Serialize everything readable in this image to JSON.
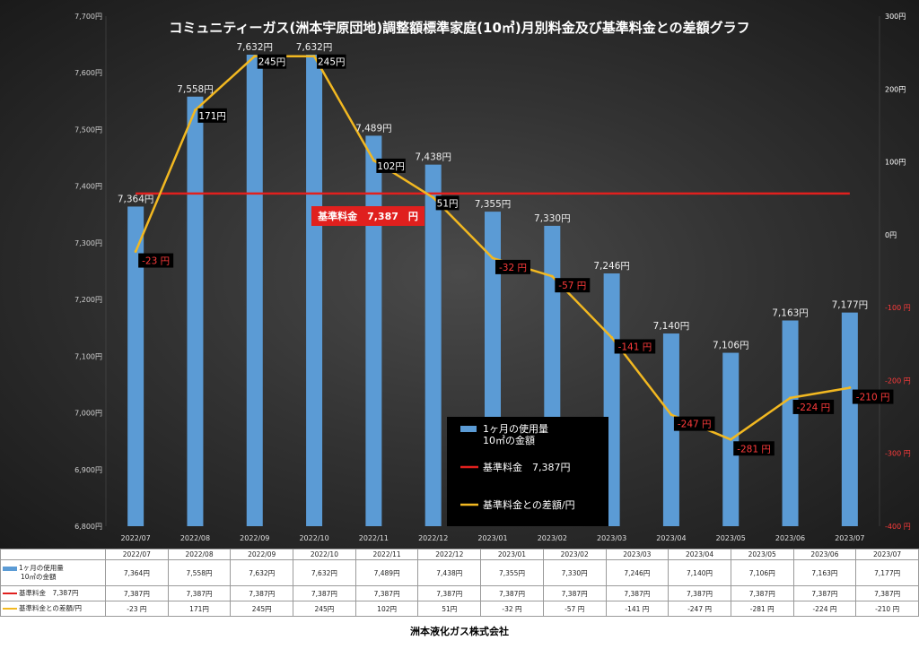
{
  "title": "コミュニティーガス(洲本宇原団地)調整額標準家庭(10㎥)月別料金及び基準料金との差額グラフ",
  "colors": {
    "bar": "#5b9bd5",
    "base_line": "#e0201e",
    "diff_line": "#f2b821",
    "right_axis_positive": "#ffffff",
    "right_axis_negative": "#ff3b3b"
  },
  "chart_data": {
    "type": "bar",
    "categories": [
      "2022/07",
      "2022/08",
      "2022/09",
      "2022/10",
      "2022/11",
      "2022/12",
      "2023/01",
      "2023/02",
      "2023/03",
      "2023/04",
      "2023/05",
      "2023/06",
      "2023/07"
    ],
    "series": [
      {
        "name": "1ヶ月の使用量10㎥の金額",
        "type": "bar",
        "axis": "left",
        "values": [
          7364,
          7558,
          7632,
          7632,
          7489,
          7438,
          7355,
          7330,
          7246,
          7140,
          7106,
          7163,
          7177
        ],
        "labels": [
          "7,364円",
          "7,558円",
          "7,632円",
          "7,632円",
          "7,489円",
          "7,438円",
          "7,355円",
          "7,330円",
          "7,246円",
          "7,140円",
          "7,106円",
          "7,163円",
          "7,177円"
        ]
      },
      {
        "name": "基準料金 7,387円",
        "type": "line",
        "axis": "left",
        "values": [
          7387,
          7387,
          7387,
          7387,
          7387,
          7387,
          7387,
          7387,
          7387,
          7387,
          7387,
          7387,
          7387
        ]
      },
      {
        "name": "基準料金との差額/円",
        "type": "line",
        "axis": "right",
        "values": [
          -23,
          171,
          245,
          245,
          102,
          51,
          -32,
          -57,
          -141,
          -247,
          -281,
          -224,
          -210
        ],
        "labels": [
          "-23 円",
          "171円",
          "245円",
          "245円",
          "102円",
          "51円",
          "-32 円",
          "-57 円",
          "-141 円",
          "-247 円",
          "-281 円",
          "-224 円",
          "-210 円"
        ]
      }
    ],
    "y_left": {
      "range": [
        6800,
        7700
      ],
      "ticks": [
        "6,800円",
        "6,900円",
        "7,000円",
        "7,100円",
        "7,200円",
        "7,300円",
        "7,400円",
        "7,500円",
        "7,600円",
        "7,700円"
      ]
    },
    "y_right": {
      "range": [
        -400,
        300
      ],
      "ticks": [
        "-400 円",
        "-300 円",
        "-200 円",
        "-100 円",
        "0円",
        "100円",
        "200円",
        "300円"
      ]
    },
    "annotation": "基準料金　7,387　円",
    "legend": {
      "placement": "bottom-center",
      "items": [
        "1ヶ月の使用量\n10㎥の金額",
        "基準料金　7,387円",
        "基準料金との差額/円"
      ]
    }
  },
  "table": {
    "header": [
      "2022/07",
      "2022/08",
      "2022/09",
      "2022/10",
      "2022/11",
      "2022/12",
      "2023/01",
      "2023/02",
      "2023/03",
      "2023/04",
      "2023/05",
      "2023/06",
      "2023/07"
    ],
    "rows": [
      {
        "label": "1ヶ月の使用量",
        "label2": "10㎥の金額",
        "values": [
          "7,364円",
          "7,558円",
          "7,632円",
          "7,632円",
          "7,489円",
          "7,438円",
          "7,355円",
          "7,330円",
          "7,246円",
          "7,140円",
          "7,106円",
          "7,163円",
          "7,177円"
        ]
      },
      {
        "label": "基準料金　7,387円",
        "values": [
          "7,387円",
          "7,387円",
          "7,387円",
          "7,387円",
          "7,387円",
          "7,387円",
          "7,387円",
          "7,387円",
          "7,387円",
          "7,387円",
          "7,387円",
          "7,387円",
          "7,387円"
        ]
      },
      {
        "label": "基準料金との差額/円",
        "values": [
          "-23 円",
          "171円",
          "245円",
          "245円",
          "102円",
          "51円",
          "-32 円",
          "-57 円",
          "-141 円",
          "-247 円",
          "-281 円",
          "-224 円",
          "-210 円"
        ]
      }
    ]
  },
  "footer": "洲本液化ガス株式会社"
}
